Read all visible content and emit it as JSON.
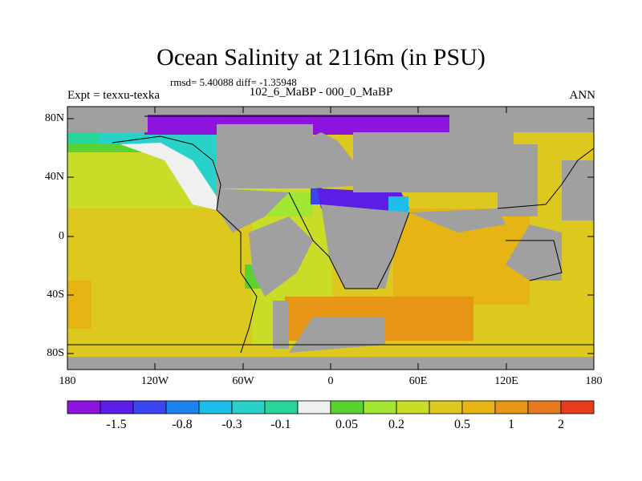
{
  "header": {
    "title": "Ocean Salinity at 2116m (in PSU)",
    "stats": "rmsd= 5.40088 diff= -1.35948",
    "experiment": "Expt = texxu-texka",
    "subtitle": "102_6_MaBP - 000_0_MaBP",
    "season": "ANN"
  },
  "map": {
    "lat_labels": [
      "80N",
      "40N",
      "0",
      "40S",
      "80S"
    ],
    "lon_labels": [
      "180",
      "120W",
      "60W",
      "0",
      "60E",
      "120E",
      "180"
    ],
    "land_color": "#a0a0a0"
  },
  "colorbar": {
    "colors": [
      "#8c14dc",
      "#5a1ee6",
      "#3c46f0",
      "#1e82f0",
      "#1ebeeb",
      "#28d2c8",
      "#2ad59a",
      "#f0f0f0",
      "#5ad232",
      "#a0e632",
      "#c8dc28",
      "#dcc81e",
      "#e6b414",
      "#e69614",
      "#e6781e",
      "#e63c1e"
    ],
    "tick_labels": [
      "-1.5",
      "-0.8",
      "-0.3",
      "-0.1",
      "0.05",
      "0.2",
      "0.5",
      "1",
      "2"
    ]
  }
}
